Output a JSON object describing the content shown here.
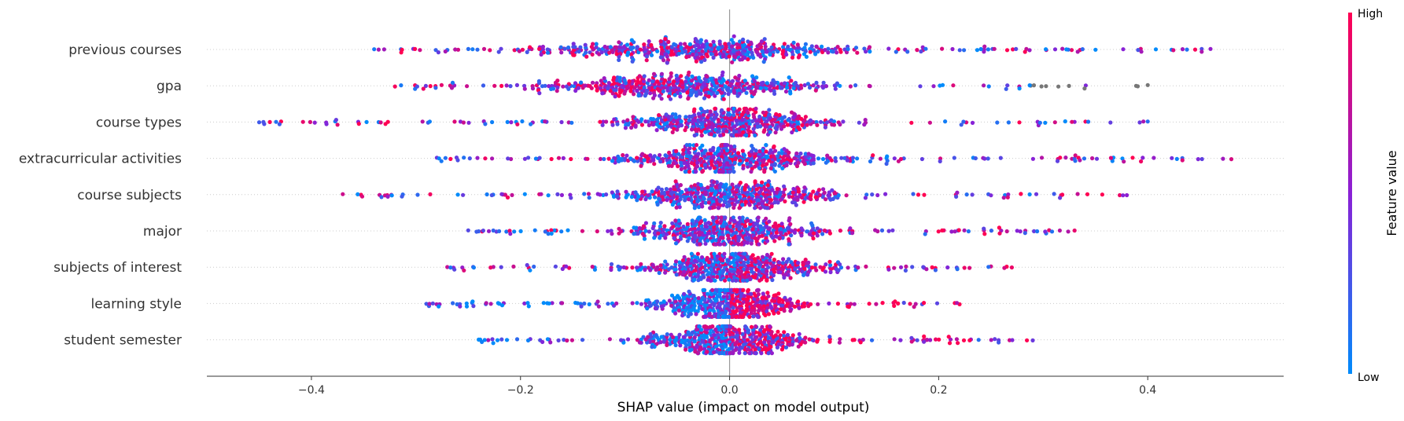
{
  "chart_data": {
    "type": "scatter",
    "subtype": "shap-beeswarm",
    "xlabel": "SHAP value (impact on model output)",
    "xlim": [
      -0.5,
      0.53
    ],
    "xticks": [
      -0.4,
      -0.2,
      0.0,
      0.2,
      0.4
    ],
    "xtick_labels": [
      "−0.4",
      "−0.2",
      "0.0",
      "0.2",
      "0.4"
    ],
    "features": [
      {
        "name": "previous courses",
        "min": -0.34,
        "max": 0.46,
        "spread": 0.11,
        "center": -0.03,
        "color_trend": -0.1,
        "missing_above": null
      },
      {
        "name": "gpa",
        "min": -0.32,
        "max": 0.4,
        "spread": 0.09,
        "center": -0.04,
        "color_trend": -0.3,
        "missing_above": 0.28
      },
      {
        "name": "course types",
        "min": -0.45,
        "max": 0.4,
        "spread": 0.07,
        "center": 0.0,
        "color_trend": 0.1,
        "missing_above": null
      },
      {
        "name": "extracurricular activities",
        "min": -0.28,
        "max": 0.48,
        "spread": 0.07,
        "center": 0.0,
        "color_trend": 0.0,
        "missing_above": null
      },
      {
        "name": "course subjects",
        "min": -0.37,
        "max": 0.38,
        "spread": 0.07,
        "center": 0.0,
        "color_trend": 0.2,
        "missing_above": null
      },
      {
        "name": "major",
        "min": -0.25,
        "max": 0.33,
        "spread": 0.06,
        "center": 0.0,
        "color_trend": 0.2,
        "missing_above": null
      },
      {
        "name": "subjects of interest",
        "min": -0.27,
        "max": 0.27,
        "spread": 0.06,
        "center": 0.01,
        "color_trend": 0.3,
        "missing_above": null
      },
      {
        "name": "learning style",
        "min": -0.29,
        "max": 0.22,
        "spread": 0.05,
        "center": 0.0,
        "color_trend": 0.9,
        "missing_above": null
      },
      {
        "name": "student semester",
        "min": -0.24,
        "max": 0.29,
        "spread": 0.05,
        "center": 0.0,
        "color_trend": 0.5,
        "missing_above": null
      }
    ],
    "colorbar": {
      "label": "Feature value",
      "high_label": "High",
      "low_label": "Low",
      "high_color": "#ff0052",
      "mid_color": "#8a20d6",
      "low_color": "#008bfb",
      "missing_color": "#777777"
    },
    "grid": false
  }
}
